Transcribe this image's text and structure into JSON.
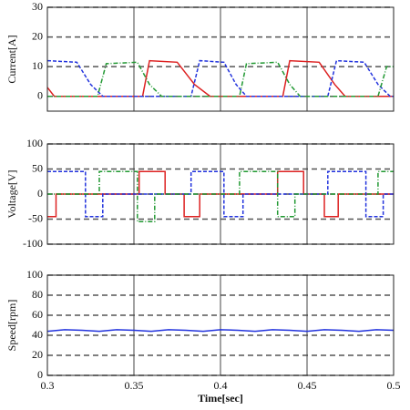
{
  "chart_data": [
    {
      "type": "line",
      "ylabel": "Current[A]",
      "ylim": [
        -5,
        30
      ],
      "yticks": [
        0,
        10,
        20,
        30
      ],
      "series": [
        {
          "color": "#dd2222",
          "linestyle": "solid",
          "x": [
            0.3,
            0.304,
            0.355,
            0.359,
            0.375,
            0.385,
            0.394,
            0.436,
            0.44,
            0.457,
            0.466,
            0.472,
            0.5
          ],
          "values": [
            3,
            0,
            0,
            12,
            11.5,
            4,
            0,
            0,
            12,
            11.5,
            4,
            0,
            0
          ]
        },
        {
          "color": "#2233dd",
          "linestyle": "dashed",
          "x": [
            0.3,
            0.317,
            0.325,
            0.332,
            0.383,
            0.388,
            0.402,
            0.409,
            0.415,
            0.462,
            0.467,
            0.483,
            0.491,
            0.498,
            0.5
          ],
          "values": [
            12,
            11.5,
            4,
            0,
            0,
            12,
            11.5,
            4,
            0,
            0,
            12,
            11.5,
            4,
            0,
            0
          ]
        },
        {
          "color": "#229933",
          "linestyle": "dashdot",
          "x": [
            0.3,
            0.329,
            0.334,
            0.352,
            0.359,
            0.366,
            0.411,
            0.415,
            0.433,
            0.44,
            0.446,
            0.491,
            0.496,
            0.5
          ],
          "values": [
            0,
            0,
            11,
            11.5,
            4,
            0,
            0,
            11,
            11.5,
            4,
            0,
            0,
            10,
            10
          ]
        }
      ]
    },
    {
      "type": "line",
      "ylabel": "Voltage[V]",
      "ylim": [
        -100,
        100
      ],
      "yticks": [
        -100,
        -50,
        0,
        50,
        100
      ],
      "series": [
        {
          "color": "#dd2222",
          "linestyle": "solid",
          "x": [
            0.3,
            0.305,
            0.305,
            0.353,
            0.353,
            0.368,
            0.368,
            0.379,
            0.379,
            0.388,
            0.388,
            0.433,
            0.433,
            0.448,
            0.448,
            0.46,
            0.46,
            0.468,
            0.468,
            0.5
          ],
          "values": [
            -45,
            -45,
            0,
            0,
            45,
            45,
            0,
            0,
            -45,
            -45,
            0,
            0,
            45,
            45,
            0,
            0,
            -45,
            -45,
            0,
            0
          ]
        },
        {
          "color": "#2233dd",
          "linestyle": "dashed",
          "x": [
            0.3,
            0.322,
            0.322,
            0.332,
            0.332,
            0.383,
            0.383,
            0.402,
            0.402,
            0.413,
            0.413,
            0.462,
            0.462,
            0.484,
            0.484,
            0.494,
            0.494,
            0.5
          ],
          "values": [
            45,
            45,
            -45,
            -45,
            0,
            0,
            45,
            45,
            -45,
            -45,
            0,
            0,
            45,
            45,
            -45,
            -45,
            0,
            0
          ]
        },
        {
          "color": "#229933",
          "linestyle": "dashdot",
          "x": [
            0.3,
            0.33,
            0.33,
            0.352,
            0.352,
            0.362,
            0.362,
            0.411,
            0.411,
            0.433,
            0.433,
            0.443,
            0.443,
            0.491,
            0.491,
            0.5
          ],
          "values": [
            0,
            0,
            45,
            45,
            -55,
            -55,
            0,
            0,
            45,
            45,
            -45,
            -45,
            0,
            0,
            45,
            45
          ]
        }
      ]
    },
    {
      "type": "line",
      "ylabel": "Speed[rpm]",
      "xlabel": "Time[sec]",
      "ylim": [
        0,
        100
      ],
      "yticks": [
        0,
        20,
        40,
        60,
        80,
        100
      ],
      "xlim": [
        0.3,
        0.5
      ],
      "xticks": [
        0.3,
        0.35,
        0.4,
        0.45,
        0.5
      ],
      "series": [
        {
          "color": "#2233dd",
          "linestyle": "solid",
          "x": [
            0.3,
            0.31,
            0.32,
            0.33,
            0.34,
            0.35,
            0.36,
            0.37,
            0.38,
            0.39,
            0.4,
            0.41,
            0.42,
            0.43,
            0.44,
            0.45,
            0.46,
            0.47,
            0.48,
            0.49,
            0.5
          ],
          "values": [
            44,
            45.5,
            45,
            44,
            45.5,
            45,
            44,
            45.5,
            45,
            44,
            45.5,
            45,
            44,
            45.5,
            45,
            44,
            45.5,
            45,
            44,
            45.5,
            45
          ]
        }
      ]
    }
  ]
}
